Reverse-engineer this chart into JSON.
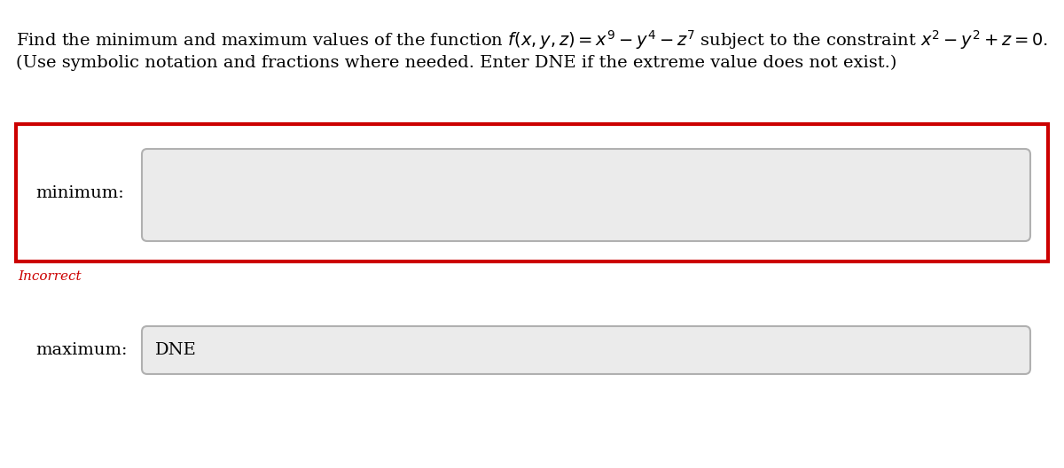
{
  "title_line1_plain": "Find the minimum and maximum values of the function ",
  "title_line1_math": "$f(x, y, z) = x^9 - y^4 - z^7$",
  "title_line1_mid": " subject to the constraint ",
  "title_line1_math2": "$x^2 - y^2 + z = 0$",
  "title_line1_end": ".",
  "title_line2": "(Use symbolic notation and fractions where needed. Enter DNE if the extreme value does not exist.)",
  "min_label": "minimum:",
  "max_label": "maximum:",
  "max_value": "DNE",
  "incorrect_text": "Incorrect",
  "bg_color": "#ffffff",
  "box_bg": "#ebebeb",
  "box_border_light": "#d0d0d0",
  "box_border_dark": "#b0b0b0",
  "red_border": "#cc0000",
  "incorrect_color": "#cc0000",
  "text_color": "#000000",
  "label_fontsize": 14,
  "title_fontsize": 14,
  "incorrect_fontsize": 11
}
